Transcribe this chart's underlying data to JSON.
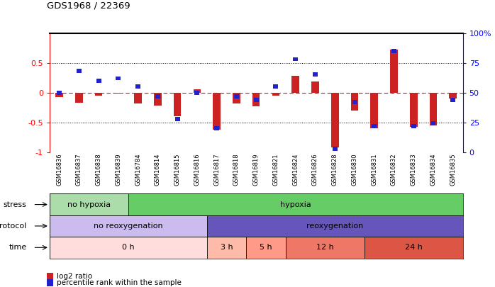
{
  "title": "GDS1968 / 22369",
  "samples": [
    "GSM16836",
    "GSM16837",
    "GSM16838",
    "GSM16839",
    "GSM16784",
    "GSM16814",
    "GSM16815",
    "GSM16816",
    "GSM16817",
    "GSM16818",
    "GSM16819",
    "GSM16821",
    "GSM16824",
    "GSM16826",
    "GSM16828",
    "GSM16830",
    "GSM16831",
    "GSM16832",
    "GSM16833",
    "GSM16834",
    "GSM16835"
  ],
  "log2_ratio": [
    -0.08,
    -0.17,
    -0.05,
    -0.02,
    -0.18,
    -0.22,
    -0.4,
    0.05,
    -0.62,
    -0.18,
    -0.23,
    -0.05,
    0.28,
    0.18,
    -0.92,
    -0.3,
    -0.6,
    0.72,
    -0.57,
    -0.55,
    -0.1
  ],
  "percentile": [
    50,
    68,
    60,
    62,
    55,
    47,
    28,
    50,
    20,
    47,
    44,
    55,
    78,
    65,
    3,
    42,
    22,
    85,
    22,
    24,
    44
  ],
  "bar_color": "#cc2222",
  "dot_color": "#2222cc",
  "stress_data": [
    {
      "start": 0,
      "end": 4,
      "color": "#aaddaa",
      "label": "no hypoxia"
    },
    {
      "start": 4,
      "end": 21,
      "color": "#66cc66",
      "label": "hypoxia"
    }
  ],
  "protocol_data": [
    {
      "start": 0,
      "end": 8,
      "color": "#ccbbee",
      "label": "no reoxygenation"
    },
    {
      "start": 8,
      "end": 21,
      "color": "#6655bb",
      "label": "reoxygenation"
    }
  ],
  "time_data": [
    {
      "start": 0,
      "end": 8,
      "color": "#ffdddd",
      "label": "0 h"
    },
    {
      "start": 8,
      "end": 10,
      "color": "#ffbbaa",
      "label": "3 h"
    },
    {
      "start": 10,
      "end": 12,
      "color": "#ff9988",
      "label": "5 h"
    },
    {
      "start": 12,
      "end": 16,
      "color": "#ee7766",
      "label": "12 h"
    },
    {
      "start": 16,
      "end": 21,
      "color": "#dd5544",
      "label": "24 h"
    }
  ],
  "legend_labels": [
    "log2 ratio",
    "percentile rank within the sample"
  ]
}
